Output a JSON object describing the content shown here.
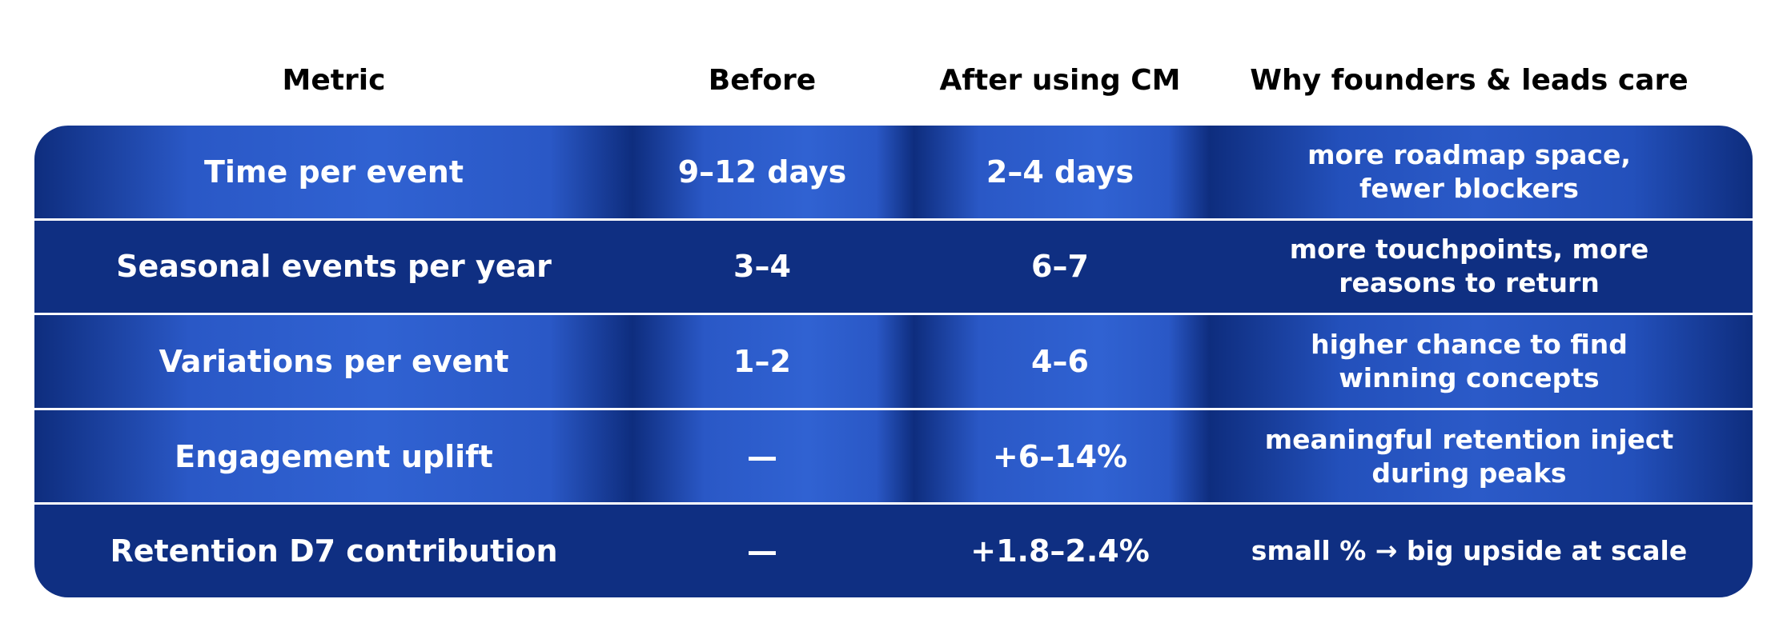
{
  "header": {
    "columns": [
      "Metric",
      "Before",
      "After using CM",
      "Why founders & leads care"
    ]
  },
  "table": {
    "rows": [
      {
        "metric": "Time per event",
        "before": "9–12 days",
        "after": "2–4 days",
        "why": [
          "more roadmap space,",
          "fewer blockers"
        ]
      },
      {
        "metric": "Seasonal events per year",
        "before": "3–4",
        "after": "6–7",
        "why": [
          "more touchpoints, more",
          "reasons to return"
        ]
      },
      {
        "metric": "Variations per event",
        "before": "1–2",
        "after": "4–6",
        "why": [
          "higher chance to find",
          "winning concepts"
        ]
      },
      {
        "metric": "Engagement uplift",
        "before": "—",
        "after": "+6–14%",
        "why": [
          "meaningful retention inject",
          "during peaks"
        ]
      },
      {
        "metric": "Retention D7 contribution",
        "before": "—",
        "after": "+1.8–2.4%",
        "why": [
          "small % → big upside at scale"
        ]
      }
    ]
  }
}
